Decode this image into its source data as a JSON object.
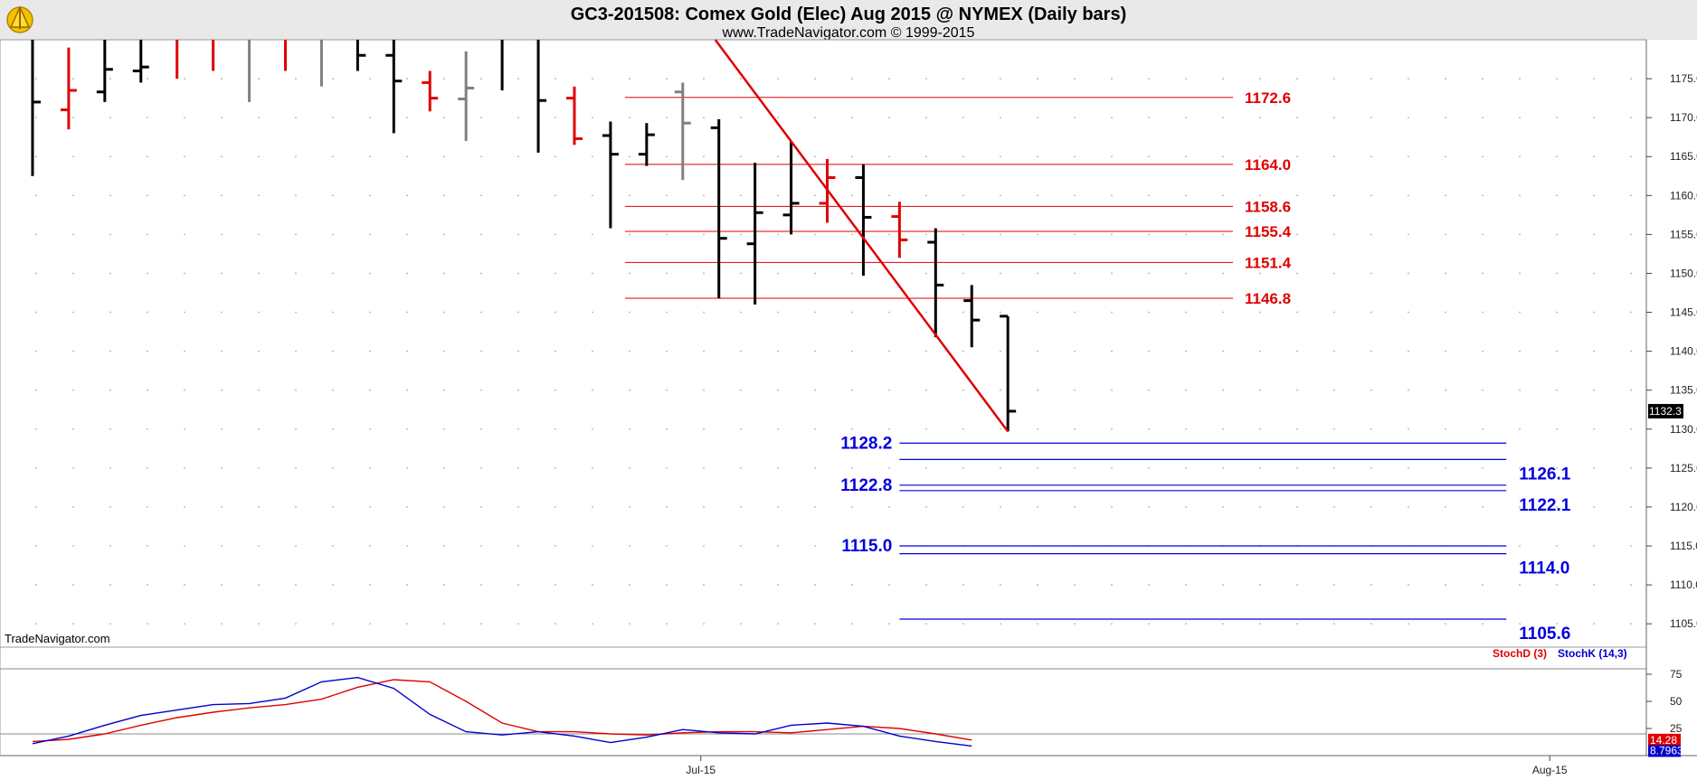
{
  "chart_data": [
    {
      "type": "bar",
      "subtype": "ohlc",
      "title": "GC3-201508:  Comex Gold (Elec) Aug 2015 @ NYMEX  (Daily bars)",
      "subtitle": "www.TradeNavigator.com © 1999-2015",
      "watermark": "TradeNavigator.com",
      "ylim": [
        1102,
        1180
      ],
      "y_ticks": [
        "1105.0",
        "1110.0",
        "1115.0",
        "1120.0",
        "1125.0",
        "1130.0",
        "1135.0",
        "1140.0",
        "1145.0",
        "1150.0",
        "1155.0",
        "1160.0",
        "1165.0",
        "1170.0",
        "1175.0"
      ],
      "x_ticks": [
        {
          "label": "Jul-15",
          "index": 18.5
        },
        {
          "label": "Aug-15",
          "index": 42
        }
      ],
      "x_range": [
        -0.4,
        44.6
      ],
      "last_price": "1132.3",
      "colors": {
        "up": "#000000",
        "down": "#e00000",
        "flat": "#808080",
        "resistance": "#e00000",
        "support": "#0000e0",
        "trendline": "#e00000"
      },
      "bars": [
        {
          "open": 1180,
          "high": 1180,
          "low": 1162.5,
          "close": 1172,
          "color": "#000000"
        },
        {
          "open": 1171,
          "high": 1179,
          "low": 1168.5,
          "close": 1173.5,
          "color": "#e00000"
        },
        {
          "open": 1173.3,
          "high": 1180,
          "low": 1172,
          "close": 1176.2,
          "color": "#000000"
        },
        {
          "open": 1176,
          "high": 1180,
          "low": 1174.5,
          "close": 1176.5,
          "color": "#000000"
        },
        {
          "open": 1180,
          "high": 1180,
          "low": 1175,
          "close": 1180,
          "color": "#e00000"
        },
        {
          "open": 1180,
          "high": 1180,
          "low": 1176,
          "close": 1180,
          "color": "#e00000"
        },
        {
          "open": 1180,
          "high": 1180,
          "low": 1172,
          "close": 1180,
          "color": "#808080"
        },
        {
          "open": 1180,
          "high": 1180,
          "low": 1176,
          "close": 1180,
          "color": "#e00000"
        },
        {
          "open": 1180,
          "high": 1180,
          "low": 1174,
          "close": 1180,
          "color": "#808080"
        },
        {
          "open": 1180,
          "high": 1180,
          "low": 1176,
          "close": 1178,
          "color": "#000000"
        },
        {
          "open": 1178,
          "high": 1180,
          "low": 1168,
          "close": 1174.7,
          "color": "#000000"
        },
        {
          "open": 1174.5,
          "high": 1176,
          "low": 1170.8,
          "close": 1172.5,
          "color": "#e00000"
        },
        {
          "open": 1172.4,
          "high": 1178.5,
          "low": 1167,
          "close": 1173.8,
          "color": "#808080"
        },
        {
          "open": 1180,
          "high": 1180,
          "low": 1173.5,
          "close": 1180,
          "color": "#000000"
        },
        {
          "open": 1180,
          "high": 1180,
          "low": 1165.5,
          "close": 1172.2,
          "color": "#000000"
        },
        {
          "open": 1172.5,
          "high": 1174,
          "low": 1166.5,
          "close": 1167.3,
          "color": "#e00000"
        },
        {
          "open": 1167.7,
          "high": 1169.5,
          "low": 1155.8,
          "close": 1165.3,
          "color": "#000000"
        },
        {
          "open": 1165.3,
          "high": 1169.3,
          "low": 1163.8,
          "close": 1167.8,
          "color": "#000000"
        },
        {
          "open": 1173.3,
          "high": 1174.5,
          "low": 1162,
          "close": 1169.3,
          "color": "#808080"
        },
        {
          "open": 1168.7,
          "high": 1169.8,
          "low": 1146.8,
          "close": 1154.5,
          "color": "#000000"
        },
        {
          "open": 1153.8,
          "high": 1164.2,
          "low": 1146,
          "close": 1157.8,
          "color": "#000000"
        },
        {
          "open": 1157.5,
          "high": 1167,
          "low": 1155,
          "close": 1159,
          "color": "#000000"
        },
        {
          "open": 1159,
          "high": 1164.7,
          "low": 1156.5,
          "close": 1162.3,
          "color": "#e00000"
        },
        {
          "open": 1162.3,
          "high": 1164,
          "low": 1149.7,
          "close": 1157.2,
          "color": "#000000"
        },
        {
          "open": 1157.3,
          "high": 1159.2,
          "low": 1152,
          "close": 1154.3,
          "color": "#e00000"
        },
        {
          "open": 1154,
          "high": 1155.8,
          "low": 1141.8,
          "close": 1148.5,
          "color": "#000000"
        },
        {
          "open": 1146.5,
          "high": 1148.5,
          "low": 1140.5,
          "close": 1144,
          "color": "#000000"
        },
        {
          "open": 1144.5,
          "high": 1144.5,
          "low": 1129.7,
          "close": 1132.3,
          "color": "#000000"
        }
      ],
      "resistance_levels": [
        {
          "label": "1172.6",
          "value": 1172.6
        },
        {
          "label": "1164.0",
          "value": 1164.0
        },
        {
          "label": "1158.6",
          "value": 1158.6
        },
        {
          "label": "1155.4",
          "value": 1155.4
        },
        {
          "label": "1151.4",
          "value": 1151.4
        },
        {
          "label": "1146.8",
          "value": 1146.8
        }
      ],
      "support_levels": [
        {
          "label": "1128.2",
          "value": 1128.2,
          "label_side": "left"
        },
        {
          "label": "1126.1",
          "value": 1126.1,
          "label_side": "right"
        },
        {
          "label": "1122.8",
          "value": 1122.8,
          "label_side": "left"
        },
        {
          "label": "1122.1",
          "value": 1122.1,
          "label_side": "right"
        },
        {
          "label": "1115.0",
          "value": 1115.0,
          "label_side": "left"
        },
        {
          "label": "1114.0",
          "value": 1114.0,
          "label_side": "right"
        },
        {
          "label": "1105.6",
          "value": 1105.6,
          "label_side": "right"
        }
      ],
      "trendline": {
        "from": {
          "index": 18.9,
          "value": 1180
        },
        "to": {
          "index": 27.0,
          "value": 1129.7
        }
      },
      "resistance_start_index": 16.4,
      "support_start_index": 24.0,
      "support_end_index": 40.8
    },
    {
      "type": "line",
      "title": "",
      "ylim": [
        0,
        100
      ],
      "y_ticks": [
        "25",
        "50",
        "75"
      ],
      "reference_lines": [
        20,
        80
      ],
      "legend": [
        {
          "label": "StochD (3)",
          "color": "#e00000"
        },
        {
          "label": "StochK (14,3)",
          "color": "#0000cc"
        }
      ],
      "last_values": {
        "stoch_d": "14.28",
        "stoch_k": "8.7963"
      },
      "series": [
        {
          "name": "StochD (3)",
          "color": "#e00000",
          "values": [
            13,
            15,
            20,
            28,
            35,
            40,
            44,
            47,
            52,
            63,
            70,
            68,
            50,
            30,
            22,
            22,
            20,
            19,
            21,
            22,
            22,
            21,
            24,
            27,
            25,
            20,
            14.28
          ]
        },
        {
          "name": "StochK (14,3)",
          "color": "#0000cc",
          "values": [
            11,
            18,
            28,
            37,
            42,
            47,
            48,
            53,
            68,
            72,
            62,
            38,
            22,
            19,
            22,
            18,
            12,
            17,
            24,
            21,
            20,
            28,
            30,
            27,
            18,
            13,
            8.7963
          ]
        }
      ]
    }
  ]
}
